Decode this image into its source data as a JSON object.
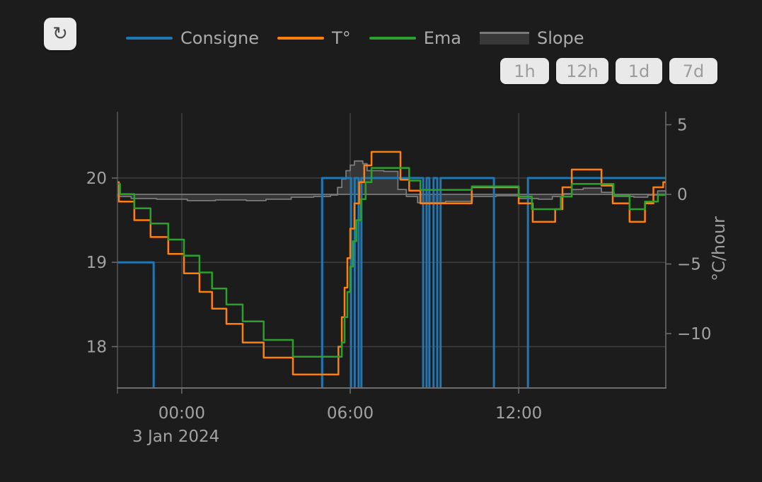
{
  "toolbar": {
    "refresh_icon": "↻"
  },
  "legend": {
    "items": [
      {
        "label": "Consigne",
        "color": "#1f77b4",
        "type": "line"
      },
      {
        "label": "T°",
        "color": "#ff7f0e",
        "type": "line"
      },
      {
        "label": "Ema",
        "color": "#2ca02c",
        "type": "line"
      },
      {
        "label": "Slope",
        "color": "#7a7a7a",
        "type": "area"
      }
    ]
  },
  "range_buttons": [
    {
      "label": "1h"
    },
    {
      "label": "12h"
    },
    {
      "label": "1d"
    },
    {
      "label": "7d"
    }
  ],
  "chart_data": {
    "type": "line",
    "title": "",
    "x_unit": "hours relative to 3 Jan 2024 00:00",
    "x_range": [
      -2.29,
      17.24
    ],
    "x_ticks": [
      {
        "value": 0,
        "label": "00:00"
      },
      {
        "value": 6,
        "label": "06:00"
      },
      {
        "value": 12,
        "label": "12:00"
      }
    ],
    "x_date_label": "3 Jan 2024",
    "y_left": {
      "range": [
        17.51,
        20.77
      ],
      "ticks": [
        {
          "value": 20,
          "label": "20"
        },
        {
          "value": 19,
          "label": "19"
        },
        {
          "value": 18,
          "label": "18"
        }
      ]
    },
    "y_right": {
      "range": [
        -13.91,
        5.84
      ],
      "title": "°C/hour",
      "ticks": [
        {
          "value": 5,
          "label": "5"
        },
        {
          "value": 0,
          "label": "0"
        },
        {
          "value": -5,
          "label": "−5"
        },
        {
          "value": -10,
          "label": "−10"
        }
      ]
    },
    "grid": true,
    "legend_position": "top",
    "series": [
      {
        "name": "Consigne",
        "color": "#1f77b4",
        "axis": "left",
        "step": true,
        "width": 3,
        "points": [
          [
            -2.29,
            19
          ],
          [
            -1.0,
            17
          ],
          [
            5.0,
            20
          ],
          [
            6.03,
            17
          ],
          [
            6.16,
            20
          ],
          [
            6.3,
            17
          ],
          [
            6.4,
            20
          ],
          [
            8.6,
            17
          ],
          [
            8.72,
            20
          ],
          [
            8.82,
            17
          ],
          [
            8.97,
            20
          ],
          [
            9.1,
            17
          ],
          [
            9.22,
            20
          ],
          [
            11.12,
            17
          ],
          [
            12.33,
            20
          ]
        ]
      },
      {
        "name": "T°",
        "color": "#ff7f0e",
        "axis": "left",
        "step": true,
        "width": 2.5,
        "points": [
          [
            -2.29,
            19.95
          ],
          [
            -2.24,
            19.72
          ],
          [
            -1.69,
            19.5
          ],
          [
            -1.11,
            19.3
          ],
          [
            -0.48,
            19.1
          ],
          [
            0.08,
            18.87
          ],
          [
            0.63,
            18.65
          ],
          [
            1.08,
            18.45
          ],
          [
            1.59,
            18.27
          ],
          [
            2.17,
            18.05
          ],
          [
            2.92,
            17.87
          ],
          [
            3.96,
            17.67
          ],
          [
            5.58,
            18.0
          ],
          [
            5.7,
            18.35
          ],
          [
            5.8,
            18.7
          ],
          [
            5.9,
            19.05
          ],
          [
            6.0,
            19.4
          ],
          [
            6.15,
            19.7
          ],
          [
            6.32,
            19.95
          ],
          [
            6.5,
            20.15
          ],
          [
            6.76,
            20.31
          ],
          [
            7.79,
            19.98
          ],
          [
            8.1,
            19.85
          ],
          [
            8.5,
            19.7
          ],
          [
            10.33,
            19.89
          ],
          [
            12.0,
            19.7
          ],
          [
            12.5,
            19.48
          ],
          [
            13.3,
            19.63
          ],
          [
            13.56,
            19.89
          ],
          [
            13.89,
            20.1
          ],
          [
            14.95,
            19.91
          ],
          [
            15.35,
            19.7
          ],
          [
            15.95,
            19.48
          ],
          [
            16.5,
            19.7
          ],
          [
            16.8,
            19.89
          ],
          [
            17.15,
            19.95
          ]
        ]
      },
      {
        "name": "Ema",
        "color": "#2ca02c",
        "axis": "left",
        "step": true,
        "width": 2.5,
        "points": [
          [
            -2.29,
            19.93
          ],
          [
            -2.2,
            19.81
          ],
          [
            -1.69,
            19.64
          ],
          [
            -1.11,
            19.46
          ],
          [
            -0.48,
            19.27
          ],
          [
            0.08,
            19.08
          ],
          [
            0.63,
            18.88
          ],
          [
            1.08,
            18.69
          ],
          [
            1.59,
            18.5
          ],
          [
            2.17,
            18.3
          ],
          [
            2.92,
            18.08
          ],
          [
            3.96,
            17.88
          ],
          [
            5.7,
            18.05
          ],
          [
            5.8,
            18.35
          ],
          [
            5.9,
            18.65
          ],
          [
            6.0,
            18.95
          ],
          [
            6.1,
            19.25
          ],
          [
            6.22,
            19.5
          ],
          [
            6.38,
            19.75
          ],
          [
            6.55,
            19.95
          ],
          [
            6.76,
            20.12
          ],
          [
            8.1,
            19.97
          ],
          [
            8.5,
            19.86
          ],
          [
            10.33,
            19.9
          ],
          [
            12.0,
            19.78
          ],
          [
            12.47,
            19.63
          ],
          [
            13.5,
            19.78
          ],
          [
            13.89,
            19.93
          ],
          [
            15.38,
            19.79
          ],
          [
            15.95,
            19.63
          ],
          [
            16.5,
            19.72
          ],
          [
            16.96,
            19.8
          ]
        ]
      },
      {
        "name": "Slope",
        "color": "#7a7a7a",
        "axis": "right",
        "step": true,
        "width": 1.8,
        "area": true,
        "fill": "rgba(130,130,130,0.25)",
        "points": [
          [
            -2.29,
            -0.15
          ],
          [
            -1.8,
            -0.3
          ],
          [
            -0.9,
            -0.35
          ],
          [
            0.2,
            -0.45
          ],
          [
            1.2,
            -0.4
          ],
          [
            2.3,
            -0.45
          ],
          [
            3.0,
            -0.35
          ],
          [
            3.9,
            -0.2
          ],
          [
            4.7,
            -0.15
          ],
          [
            5.3,
            -0.05
          ],
          [
            5.55,
            0.5
          ],
          [
            5.7,
            1.1
          ],
          [
            5.85,
            1.7
          ],
          [
            6.0,
            2.1
          ],
          [
            6.15,
            2.4
          ],
          [
            6.45,
            2.2
          ],
          [
            6.6,
            1.7
          ],
          [
            7.2,
            1.65
          ],
          [
            7.7,
            0.35
          ],
          [
            8.0,
            -0.15
          ],
          [
            8.4,
            -0.6
          ],
          [
            9.4,
            -0.5
          ],
          [
            10.35,
            -0.15
          ],
          [
            11.2,
            -0.1
          ],
          [
            12.0,
            -0.3
          ],
          [
            12.7,
            -0.35
          ],
          [
            13.2,
            -0.15
          ],
          [
            13.6,
            0.05
          ],
          [
            13.9,
            0.35
          ],
          [
            14.3,
            0.45
          ],
          [
            14.95,
            0.15
          ],
          [
            15.4,
            -0.15
          ],
          [
            16.1,
            -0.2
          ],
          [
            16.6,
            -0.05
          ],
          [
            16.95,
            0.25
          ]
        ]
      }
    ]
  }
}
